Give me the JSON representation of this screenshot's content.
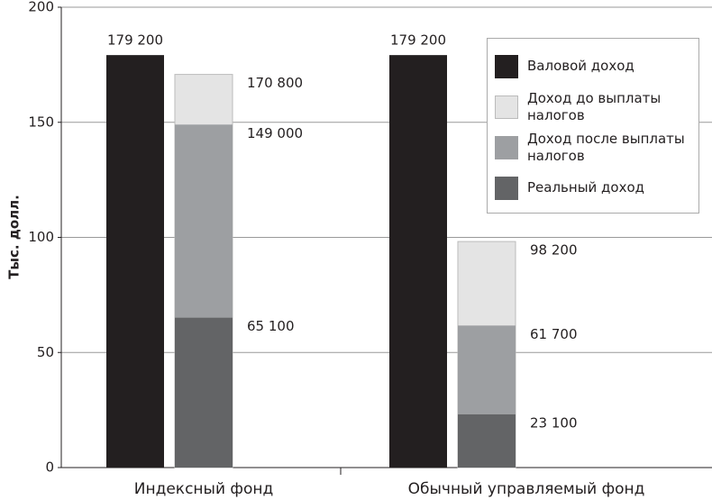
{
  "chart_data": {
    "type": "bar",
    "ylabel": "Тыс. долл.",
    "categories": [
      "Индексный фонд",
      "Обычный управляемый фонд"
    ],
    "ylim": [
      0,
      200
    ],
    "yticks": [
      0,
      50,
      100,
      150,
      200
    ],
    "grid": true,
    "legend": "upper right",
    "series": [
      {
        "name": "Валовой доход",
        "color": "#231f20",
        "values": [
          179.2,
          179.2
        ],
        "value_labels": [
          "179 200",
          "179 200"
        ]
      },
      {
        "name": "Доход до выплаты налогов",
        "color": "#e4e4e4",
        "values": [
          170.8,
          98.2
        ],
        "value_labels": [
          "170 800",
          "98 200"
        ]
      },
      {
        "name": "Доход после выплаты налогов",
        "color": "#9d9fa2",
        "values": [
          149.0,
          61.7
        ],
        "value_labels": [
          "149 000",
          "61 700"
        ]
      },
      {
        "name": "Реальный доход",
        "color": "#636466",
        "values": [
          65.1,
          23.1
        ],
        "value_labels": [
          "65 100",
          "23 100"
        ]
      }
    ]
  }
}
